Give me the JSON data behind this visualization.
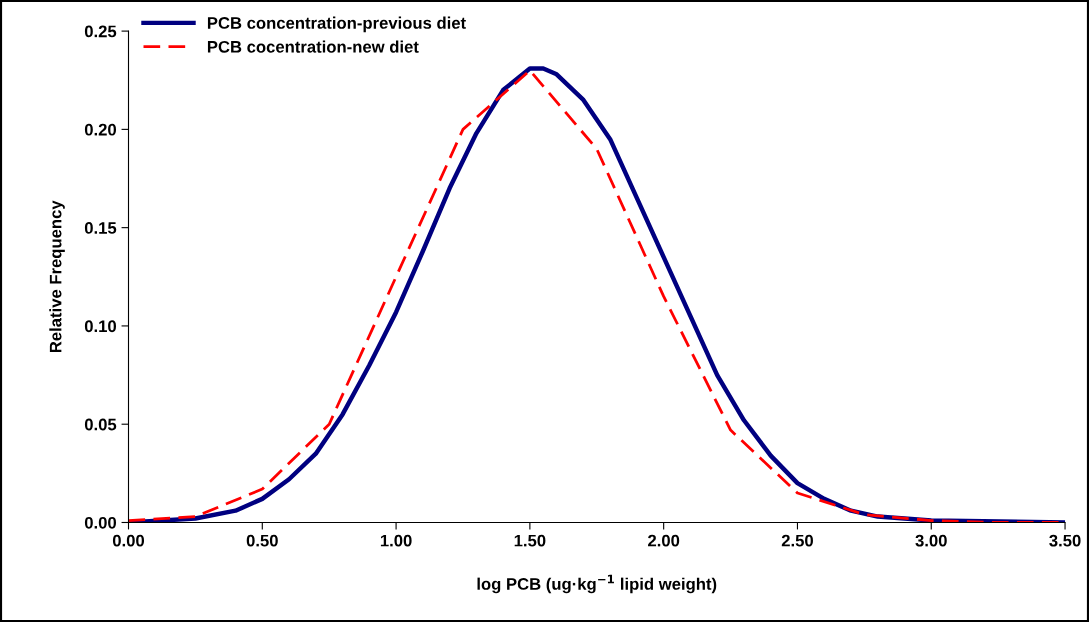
{
  "chart_data": {
    "type": "line",
    "xlabel": "log PCB (ug·kg$^{−1}$ lipid weight)",
    "ylabel": "Relative Frequency",
    "xlim": [
      0,
      3.5
    ],
    "xticks": [
      {
        "value": 0,
        "label": "0.00"
      },
      {
        "value": 0.5,
        "label": "0.50"
      },
      {
        "value": 1,
        "label": "1.00"
      },
      {
        "value": 1.5,
        "label": "1.50"
      },
      {
        "value": 2,
        "label": "2.00"
      },
      {
        "value": 2.5,
        "label": "2.50"
      },
      {
        "value": 3,
        "label": "3.00"
      },
      {
        "value": 3.5,
        "label": "3.50"
      }
    ],
    "ylim": [
      0,
      0.25
    ],
    "yticks": [
      {
        "value": 0,
        "label": "0.00"
      },
      {
        "value": 0.05,
        "label": "0.05"
      },
      {
        "value": 0.1,
        "label": "0.10"
      },
      {
        "value": 0.15,
        "label": "0.15"
      },
      {
        "value": 0.2,
        "label": "0.20"
      },
      {
        "value": 0.25,
        "label": "0.25"
      }
    ],
    "grid": false,
    "legend": "top left",
    "series": [
      {
        "name": "PCB concentration-previous diet",
        "color": "#000080",
        "line_style": "solid",
        "x": [
          0,
          0.25,
          0.4,
          0.5,
          0.6,
          0.7,
          0.8,
          0.9,
          1.0,
          1.1,
          1.2,
          1.3,
          1.4,
          1.5,
          1.55,
          1.6,
          1.7,
          1.8,
          1.9,
          2.0,
          2.1,
          2.2,
          2.3,
          2.4,
          2.5,
          2.6,
          2.7,
          2.8,
          3.0,
          3.5
        ],
        "values": [
          0,
          0.002,
          0.006,
          0.012,
          0.022,
          0.035,
          0.055,
          0.08,
          0.107,
          0.138,
          0.17,
          0.198,
          0.22,
          0.231,
          0.231,
          0.228,
          0.215,
          0.195,
          0.165,
          0.135,
          0.105,
          0.075,
          0.052,
          0.034,
          0.02,
          0.012,
          0.006,
          0.003,
          0.001,
          0
        ]
      },
      {
        "name": "PCB cocentration-new diet",
        "color": "#ff0000",
        "line_style": "dashed",
        "x": [
          0,
          0.25,
          0.5,
          0.75,
          1.0,
          1.25,
          1.5,
          1.75,
          2.0,
          2.25,
          2.5,
          2.75,
          3.0,
          3.25,
          3.5
        ],
        "values": [
          0.001,
          0.003,
          0.017,
          0.05,
          0.125,
          0.2,
          0.23,
          0.19,
          0.115,
          0.047,
          0.015,
          0.004,
          0.001,
          0,
          0
        ]
      }
    ]
  }
}
